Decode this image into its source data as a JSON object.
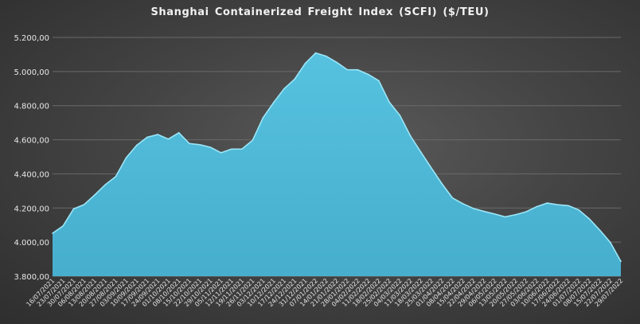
{
  "chart_data": {
    "type": "area",
    "title": "Shanghai Containerized Freight Index  (SCFI)  ($/TEU)",
    "xlabel": "",
    "ylabel": "",
    "ylim": [
      3800,
      5200
    ],
    "yticks": [
      "3.800,00",
      "4.000,00",
      "4.200,00",
      "4.400,00",
      "4.600,00",
      "4.800,00",
      "5.000,00",
      "5.200,00"
    ],
    "ytick_values": [
      3800,
      4000,
      4200,
      4400,
      4600,
      4800,
      5000,
      5200
    ],
    "x": [
      "16/07/2021",
      "23/07/2021",
      "30/07/2021",
      "06/08/2021",
      "13/08/2021",
      "20/08/2021",
      "27/08/2021",
      "03/09/2021",
      "10/09/2021",
      "17/09/2021",
      "24/09/2021",
      "01/10/2021",
      "08/10/2021",
      "15/10/2021",
      "22/10/2021",
      "29/10/2021",
      "05/11/2021",
      "12/11/2021",
      "19/11/2021",
      "26/11/2021",
      "03/12/2021",
      "10/12/2021",
      "17/12/2021",
      "24/12/2021",
      "31/12/2021",
      "07/01/2022",
      "14/01/2022",
      "21/01/2022",
      "28/01/2022",
      "04/02/2022",
      "11/02/2022",
      "18/02/2022",
      "25/02/2022",
      "04/03/2022",
      "11/03/2022",
      "18/03/2022",
      "25/03/2022",
      "01/04/2022",
      "08/04/2022",
      "15/04/2022",
      "22/04/2022",
      "29/04/2022",
      "06/05/2022",
      "13/05/2022",
      "20/05/2022",
      "27/05/2022",
      "03/06/2022",
      "10/06/2022",
      "17/06/2022",
      "24/06/2022",
      "01/07/2022",
      "08/07/2022",
      "15/07/2022",
      "22/07/2022",
      "29/07/2022"
    ],
    "series": [
      {
        "values": [
          4052,
          4095,
          4195,
          4220,
          4276,
          4336,
          4384,
          4495,
          4568,
          4615,
          4631,
          4604,
          4641,
          4578,
          4571,
          4556,
          4524,
          4545,
          4546,
          4596,
          4729,
          4818,
          4899,
          4955,
          5047,
          5109,
          5090,
          5054,
          5011,
          5010,
          4983,
          4946,
          4820,
          4743,
          4623,
          4527,
          4434,
          4342,
          4259,
          4225,
          4197,
          4180,
          4165,
          4148,
          4161,
          4178,
          4208,
          4229,
          4219,
          4214,
          4189,
          4136,
          4070,
          3998,
          3887
        ],
        "color": "#4fb7d6"
      }
    ],
    "grid": true,
    "legend": "none"
  }
}
